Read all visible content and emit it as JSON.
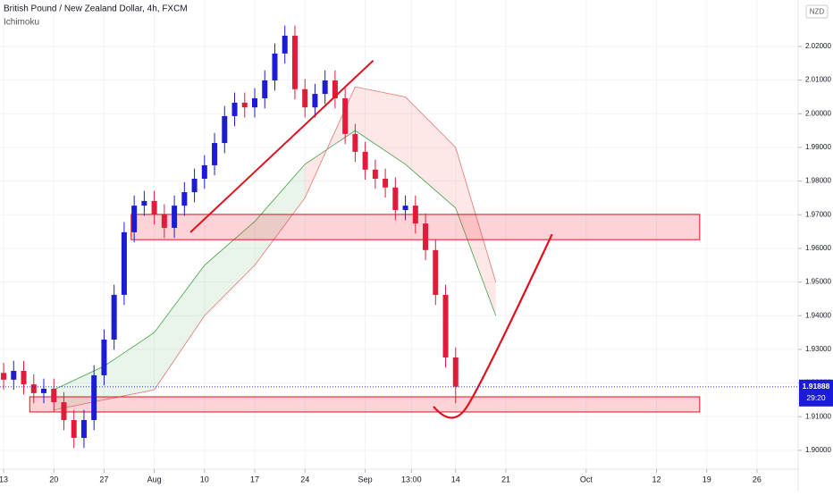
{
  "chart_data": {
    "type": "candlestick",
    "title": "British Pound / New Zealand Dollar, 4h, FXCM",
    "subtitle": "Ichimoku",
    "currency": "NZD",
    "timer": "29:20",
    "last_price": 1.91888,
    "up_color": "#1c1cd6",
    "down_color": "#e31b3a",
    "x": [
      0,
      1,
      2,
      3,
      4,
      5,
      6,
      7,
      8,
      9,
      10,
      11,
      12,
      13,
      14,
      15,
      16,
      17,
      18,
      19,
      20,
      21,
      22,
      23,
      24,
      25,
      26,
      27,
      28,
      29,
      30,
      31,
      32,
      33,
      34,
      35,
      36,
      37,
      38,
      39,
      40,
      41,
      42,
      43,
      44,
      45
    ],
    "open": [
      1.923,
      1.921,
      1.9236,
      1.9196,
      1.917,
      1.9183,
      1.9143,
      1.909,
      1.9037,
      1.909,
      1.9223,
      1.9329,
      1.9462,
      1.9648,
      1.9727,
      1.9741,
      1.9701,
      1.9661,
      1.9727,
      1.9767,
      1.9807,
      1.9847,
      1.9913,
      1.9993,
      2.0033,
      2.0019,
      2.0046,
      2.0099,
      2.0179,
      2.0232,
      2.0073,
      2.0019,
      2.0059,
      2.0099,
      2.0046,
      1.994,
      1.9887,
      1.9834,
      1.9807,
      1.9781,
      1.9714,
      1.9727,
      1.9674,
      1.9595,
      1.9462,
      1.9276
    ],
    "high": [
      1.926,
      1.9266,
      1.9266,
      1.9226,
      1.9213,
      1.9213,
      1.9173,
      1.912,
      1.912,
      1.9253,
      1.9359,
      1.9492,
      1.9678,
      1.9757,
      1.9771,
      1.9771,
      1.9731,
      1.9757,
      1.9797,
      1.9837,
      1.9877,
      1.9943,
      2.0023,
      2.0063,
      2.0063,
      2.0076,
      2.0129,
      2.0209,
      2.0262,
      2.0262,
      2.0103,
      2.0089,
      2.0129,
      2.0129,
      2.0076,
      1.997,
      1.9917,
      1.9864,
      1.9837,
      1.9811,
      1.9757,
      1.9757,
      1.9704,
      1.9625,
      1.9492,
      1.9306
    ],
    "low": [
      1.918,
      1.918,
      1.9166,
      1.914,
      1.914,
      1.9113,
      1.906,
      1.9007,
      1.9007,
      1.906,
      1.9193,
      1.9299,
      1.9432,
      1.9618,
      1.9697,
      1.9671,
      1.9631,
      1.9631,
      1.9697,
      1.9737,
      1.9777,
      1.9817,
      1.9883,
      1.9963,
      1.9989,
      1.9989,
      2.0016,
      2.0069,
      2.0149,
      2.0043,
      1.9989,
      1.9989,
      2.0029,
      2.0016,
      1.991,
      1.9857,
      1.9804,
      1.9777,
      1.9751,
      1.9684,
      1.9684,
      1.9644,
      1.9565,
      1.9432,
      1.9246,
      1.914
    ],
    "close": [
      1.921,
      1.9236,
      1.9196,
      1.917,
      1.9183,
      1.9143,
      1.909,
      1.9037,
      1.909,
      1.9223,
      1.9329,
      1.9462,
      1.9648,
      1.9727,
      1.9741,
      1.9701,
      1.9661,
      1.9727,
      1.9767,
      1.9807,
      1.9847,
      1.9913,
      1.9993,
      2.0033,
      2.0019,
      2.0046,
      2.0099,
      2.0179,
      2.0232,
      2.0073,
      2.0019,
      2.0059,
      2.0099,
      2.0046,
      1.994,
      1.9887,
      1.9834,
      1.9807,
      1.9781,
      1.9714,
      1.9727,
      1.9674,
      1.9595,
      1.9462,
      1.9276,
      1.9189
    ],
    "cloud": {
      "x": [
        5,
        10,
        15,
        20,
        25,
        30,
        35,
        40,
        45,
        49
      ],
      "span_a": {
        "color": "#43a047",
        "values": [
          1.918,
          1.925,
          1.935,
          1.955,
          1.968,
          1.985,
          1.995,
          1.985,
          1.972,
          1.94
        ]
      },
      "span_b": {
        "color": "#e57373",
        "values": [
          1.912,
          1.915,
          1.918,
          1.94,
          1.955,
          1.975,
          2.008,
          2.005,
          1.99,
          1.95
        ]
      },
      "up_fill": "rgba(76,175,80,0.12)",
      "down_fill": "rgba(244,67,54,0.12)"
    },
    "zones": [
      {
        "x": [
          12.7,
          69.3
        ],
        "y": [
          1.9626,
          1.9701
        ]
      },
      {
        "x": [
          2.6,
          69.3
        ],
        "y": [
          1.9114,
          1.9159
        ]
      }
    ],
    "trendline": {
      "x": [
        18.6,
        36.8
      ],
      "y": [
        1.9648,
        2.0158
      ]
    },
    "curve": {
      "x": [
        42.8,
        44.6,
        54.6
      ],
      "y": [
        1.913,
        1.91,
        1.9642
      ]
    },
    "annotation_color": "#e0101e",
    "xlim": [
      -0.36,
      79.1
    ],
    "ylim": [
      1.8944,
      2.0338
    ],
    "xticks": [
      {
        "value": 0,
        "label": "13"
      },
      {
        "value": 5,
        "label": "20"
      },
      {
        "value": 10,
        "label": "27"
      },
      {
        "value": 15,
        "label": "Aug"
      },
      {
        "value": 20,
        "label": "10"
      },
      {
        "value": 25,
        "label": "17"
      },
      {
        "value": 30,
        "label": "24"
      },
      {
        "value": 36,
        "label": "Sep"
      },
      {
        "value": 40.6,
        "label": "13:00"
      },
      {
        "value": 45,
        "label": "14"
      },
      {
        "value": 50,
        "label": "21"
      },
      {
        "value": 58,
        "label": "Oct"
      },
      {
        "value": 65,
        "label": "12"
      },
      {
        "value": 70,
        "label": "19"
      },
      {
        "value": 75,
        "label": "26"
      }
    ],
    "yticks": [
      {
        "value": 1.9,
        "label": "1.90000"
      },
      {
        "value": 1.91,
        "label": "1.91000"
      },
      {
        "value": 1.92,
        "label": "1.92000"
      },
      {
        "value": 1.93,
        "label": "1.93000"
      },
      {
        "value": 1.94,
        "label": "1.94000"
      },
      {
        "value": 1.95,
        "label": "1.95000"
      },
      {
        "value": 1.96,
        "label": "1.96000"
      },
      {
        "value": 1.97,
        "label": "1.97000"
      },
      {
        "value": 1.98,
        "label": "1.98000"
      },
      {
        "value": 1.99,
        "label": "1.99000"
      },
      {
        "value": 2.0,
        "label": "2.00000"
      },
      {
        "value": 2.01,
        "label": "2.01000"
      },
      {
        "value": 2.02,
        "label": "2.02000"
      }
    ],
    "grid": true
  }
}
